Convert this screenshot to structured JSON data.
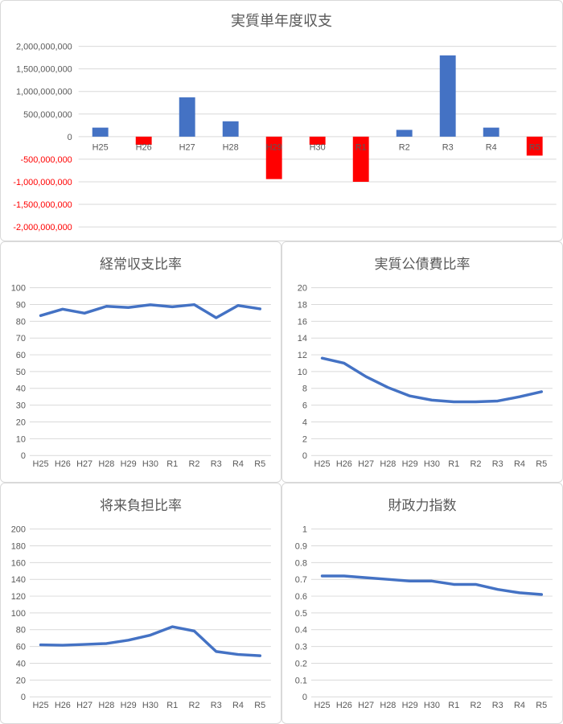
{
  "colors": {
    "blue": "#4472C4",
    "red": "#FF0000",
    "grid": "#D9D9D9",
    "text": "#595959",
    "panel_border": "#D9D9D9",
    "background": "#FFFFFF"
  },
  "chart_data": [
    {
      "type": "bar",
      "title": "実質単年度収支",
      "categories": [
        "H25",
        "H26",
        "H27",
        "H28",
        "H29",
        "H30",
        "R1",
        "R2",
        "R3",
        "R4",
        "R5"
      ],
      "values": [
        200000000,
        -180000000,
        870000000,
        340000000,
        -940000000,
        -180000000,
        -1000000000,
        150000000,
        1800000000,
        200000000,
        -420000000
      ],
      "ylim": [
        -2000000000,
        2000000000
      ],
      "ystep": 500000000,
      "grid": true,
      "legend": "none",
      "positive_color": "#4472C4",
      "negative_color": "#FF0000",
      "negative_label_color": "#FF0000"
    },
    {
      "type": "line",
      "title": "経常収支比率",
      "categories": [
        "H25",
        "H26",
        "H27",
        "H28",
        "H29",
        "H30",
        "R1",
        "R2",
        "R3",
        "R4",
        "R5"
      ],
      "values": [
        83.4,
        87.2,
        84.8,
        88.9,
        88.2,
        89.8,
        88.6,
        89.9,
        82.1,
        89.4,
        87.4
      ],
      "ylim": [
        0,
        100
      ],
      "ystep": 10,
      "grid": true,
      "legend": "none",
      "line_color": "#4472C4"
    },
    {
      "type": "line",
      "title": "実質公債費比率",
      "categories": [
        "H25",
        "H26",
        "H27",
        "H28",
        "H29",
        "H30",
        "R1",
        "R2",
        "R3",
        "R4",
        "R5"
      ],
      "values": [
        11.6,
        11.0,
        9.4,
        8.1,
        7.1,
        6.6,
        6.4,
        6.4,
        6.5,
        7.0,
        7.6
      ],
      "ylim": [
        0,
        20
      ],
      "ystep": 2,
      "grid": true,
      "legend": "none",
      "line_color": "#4472C4"
    },
    {
      "type": "line",
      "title": "将来負担比率",
      "categories": [
        "H25",
        "H26",
        "H27",
        "H28",
        "H29",
        "H30",
        "R1",
        "R2",
        "R3",
        "R4",
        "R5"
      ],
      "values": [
        62,
        61.5,
        62.5,
        63.5,
        67.5,
        73.5,
        83.5,
        78.5,
        54,
        50.5,
        49
      ],
      "ylim": [
        0,
        200
      ],
      "ystep": 20,
      "grid": true,
      "legend": "none",
      "line_color": "#4472C4"
    },
    {
      "type": "line",
      "title": "財政力指数",
      "categories": [
        "H25",
        "H26",
        "H27",
        "H28",
        "H29",
        "H30",
        "R1",
        "R2",
        "R3",
        "R4",
        "R5"
      ],
      "values": [
        0.72,
        0.72,
        0.71,
        0.7,
        0.69,
        0.69,
        0.67,
        0.67,
        0.64,
        0.62,
        0.61
      ],
      "ylim": [
        0,
        1
      ],
      "ystep": 0.1,
      "grid": true,
      "legend": "none",
      "line_color": "#4472C4"
    }
  ]
}
